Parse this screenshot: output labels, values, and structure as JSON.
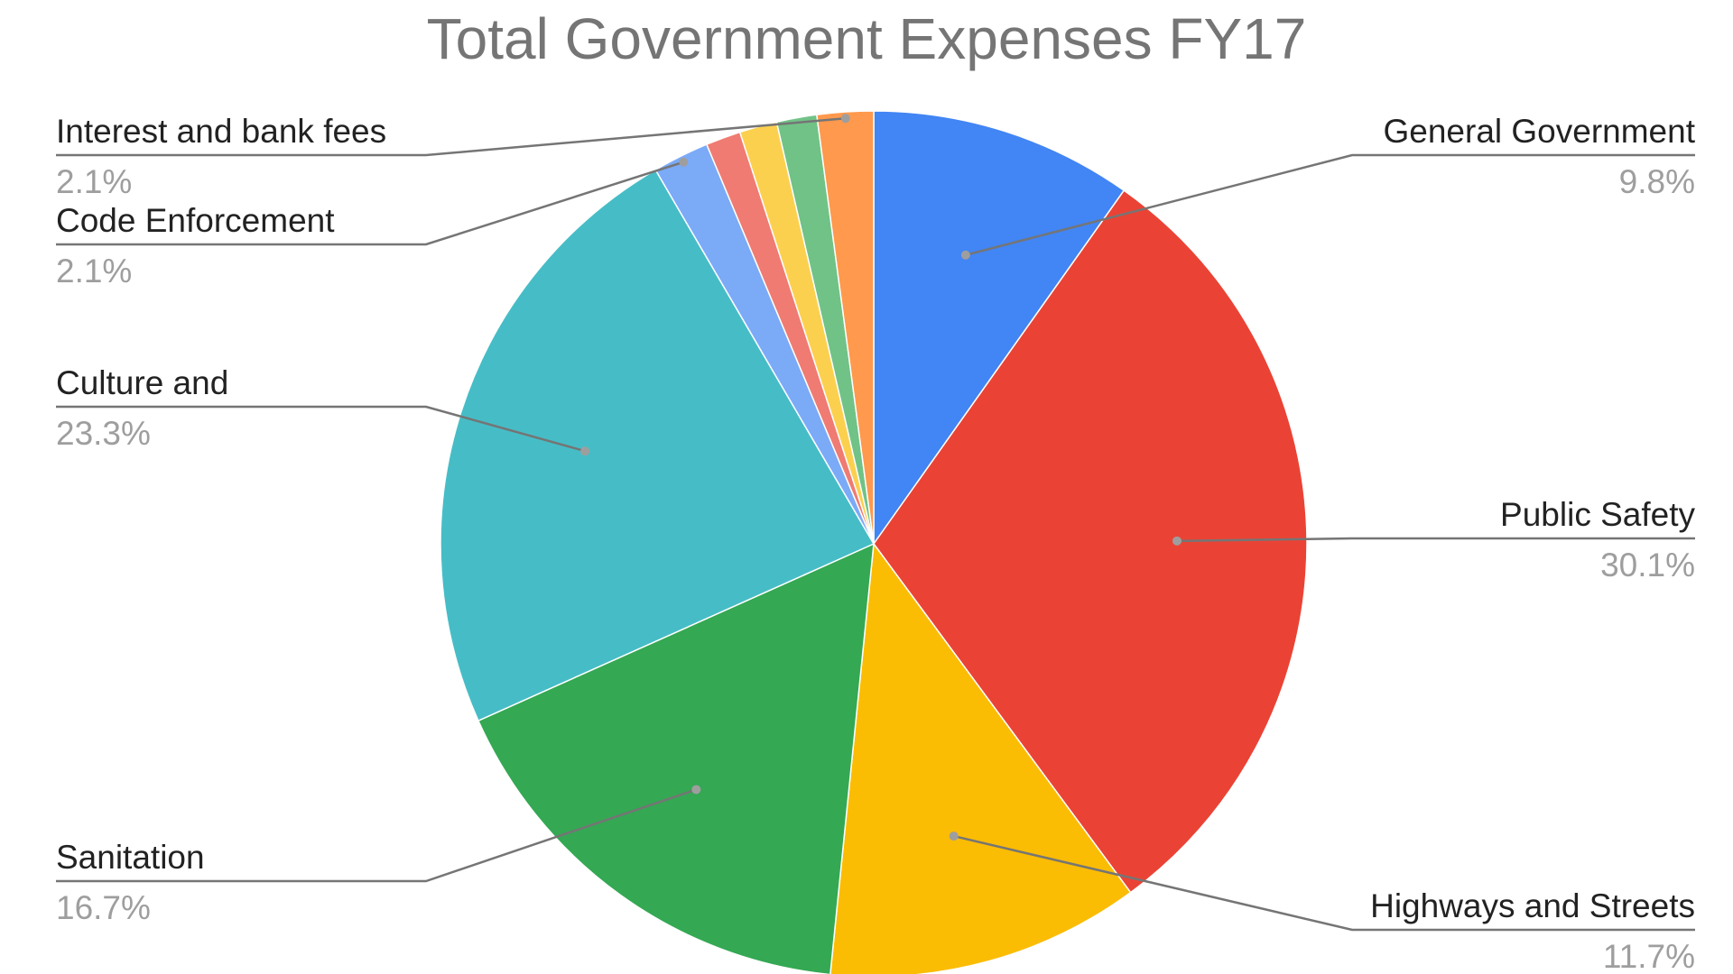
{
  "chart_data": {
    "type": "pie",
    "title": "Total Government Expenses FY17",
    "slices": [
      {
        "label": "General Government",
        "value": 9.8,
        "pct_label": "9.8%",
        "color": "#4285F4",
        "label_side": "right"
      },
      {
        "label": "Public Safety",
        "value": 30.1,
        "pct_label": "30.1%",
        "color": "#EA4335",
        "label_side": "right"
      },
      {
        "label": "Highways and Streets",
        "value": 11.7,
        "pct_label": "11.7%",
        "color": "#FBBC04",
        "label_side": "right"
      },
      {
        "label": "Sanitation",
        "value": 16.7,
        "pct_label": "16.7%",
        "color": "#34A853",
        "label_side": "left"
      },
      {
        "label": "Culture and",
        "value": 23.3,
        "pct_label": "23.3%",
        "color": "#46BDC6",
        "label_side": "left"
      },
      {
        "label": "Code Enforcement",
        "value": 2.1,
        "pct_label": "2.1%",
        "color": "#7BAAF7",
        "label_side": "left"
      },
      {
        "label": "",
        "value": 1.3,
        "pct_label": "",
        "color": "#F07B72",
        "label_side": "none"
      },
      {
        "label": "",
        "value": 1.4,
        "pct_label": "",
        "color": "#FCD04F",
        "label_side": "none"
      },
      {
        "label": "",
        "value": 1.5,
        "pct_label": "",
        "color": "#71C287",
        "label_side": "none"
      },
      {
        "label": "Interest and bank fees",
        "value": 2.1,
        "pct_label": "2.1%",
        "color": "#FF994D",
        "label_side": "left"
      }
    ],
    "start_angle_deg": 0,
    "direction": "clockwise",
    "legend": "none",
    "grid": false
  }
}
